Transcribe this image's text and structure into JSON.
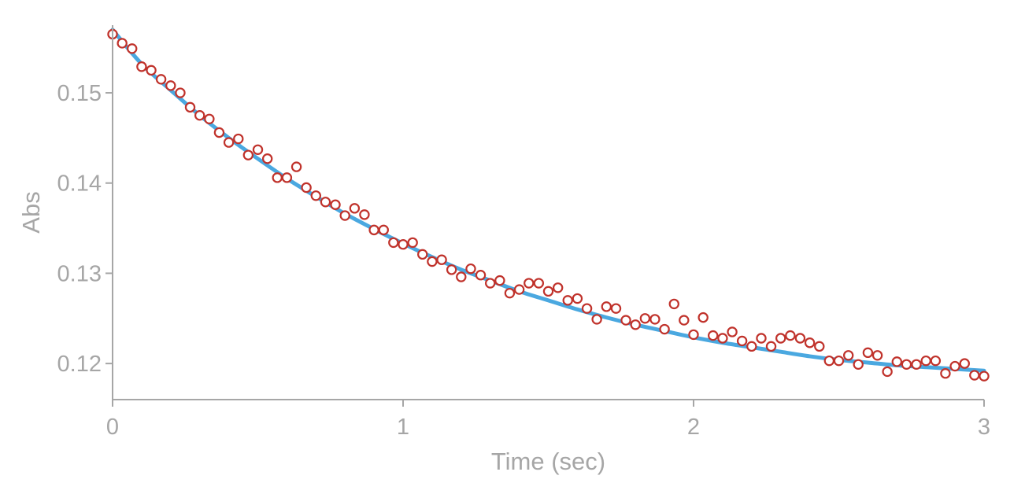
{
  "chart_data": {
    "type": "scatter",
    "title": "",
    "xlabel": "Time (sec)",
    "ylabel": "Abs",
    "xlim": [
      0,
      3
    ],
    "ylim": [
      0.116,
      0.1575
    ],
    "x_ticks": [
      0,
      1,
      2,
      3
    ],
    "x_tick_labels": [
      "0",
      "1",
      "2",
      "3"
    ],
    "y_ticks": [
      0.12,
      0.13,
      0.14,
      0.15
    ],
    "y_tick_labels": [
      "0.12",
      "0.13",
      "0.14",
      "0.15"
    ],
    "grid": false,
    "legend": "none",
    "colors": {
      "points": "#c0322b",
      "fit": "#4aa8e0",
      "axis": "#a6a6a6"
    },
    "series": [
      {
        "kind": "points",
        "x": [
          0.0,
          0.033,
          0.067,
          0.1,
          0.133,
          0.167,
          0.2,
          0.233,
          0.267,
          0.3,
          0.333,
          0.367,
          0.4,
          0.433,
          0.467,
          0.5,
          0.533,
          0.567,
          0.6,
          0.633,
          0.667,
          0.7,
          0.733,
          0.767,
          0.8,
          0.833,
          0.867,
          0.9,
          0.933,
          0.967,
          1.0,
          1.033,
          1.067,
          1.1,
          1.133,
          1.167,
          1.2,
          1.233,
          1.267,
          1.3,
          1.333,
          1.367,
          1.4,
          1.433,
          1.467,
          1.5,
          1.533,
          1.567,
          1.6,
          1.633,
          1.667,
          1.7,
          1.733,
          1.767,
          1.8,
          1.833,
          1.867,
          1.9,
          1.933,
          1.967,
          2.0,
          2.033,
          2.067,
          2.1,
          2.133,
          2.167,
          2.2,
          2.233,
          2.267,
          2.3,
          2.333,
          2.367,
          2.4,
          2.433,
          2.467,
          2.5,
          2.533,
          2.567,
          2.6,
          2.633,
          2.667,
          2.7,
          2.733,
          2.767,
          2.8,
          2.833,
          2.867,
          2.9,
          2.933,
          2.967,
          3.0
        ],
        "y": [
          0.1565,
          0.1555,
          0.1549,
          0.1529,
          0.1525,
          0.1515,
          0.1508,
          0.15,
          0.1484,
          0.1475,
          0.1471,
          0.1456,
          0.1445,
          0.1449,
          0.1431,
          0.1437,
          0.1427,
          0.1406,
          0.1406,
          0.1418,
          0.1395,
          0.1386,
          0.1379,
          0.1376,
          0.1364,
          0.1372,
          0.1365,
          0.1348,
          0.1348,
          0.1334,
          0.1332,
          0.1334,
          0.1321,
          0.1313,
          0.1315,
          0.1304,
          0.1296,
          0.1305,
          0.1298,
          0.1289,
          0.1292,
          0.1278,
          0.1282,
          0.1289,
          0.1289,
          0.128,
          0.1284,
          0.127,
          0.1272,
          0.1261,
          0.1249,
          0.1263,
          0.1261,
          0.1248,
          0.1243,
          0.125,
          0.1249,
          0.1238,
          0.1266,
          0.1248,
          0.1232,
          0.1251,
          0.1231,
          0.1228,
          0.1235,
          0.1225,
          0.1219,
          0.1228,
          0.1219,
          0.1228,
          0.1231,
          0.1228,
          0.1223,
          0.1219,
          0.1203,
          0.1203,
          0.1209,
          0.1199,
          0.1212,
          0.1209,
          0.1191,
          0.1202,
          0.1199,
          0.1199,
          0.1203,
          0.1203,
          0.1189,
          0.1197,
          0.12,
          0.1187,
          0.1186
        ]
      },
      {
        "kind": "fit",
        "x": [
          0.0,
          0.1,
          0.2,
          0.3,
          0.4,
          0.5,
          0.6,
          0.7,
          0.8,
          0.9,
          1.0,
          1.1,
          1.2,
          1.3,
          1.4,
          1.5,
          1.6,
          1.7,
          1.8,
          1.9,
          2.0,
          2.1,
          2.2,
          2.3,
          2.4,
          2.5,
          2.6,
          2.7,
          2.8,
          2.9,
          3.0
        ],
        "y": [
          0.157,
          0.1532,
          0.1503,
          0.1475,
          0.145,
          0.1427,
          0.1405,
          0.1385,
          0.1366,
          0.1349,
          0.1333,
          0.1318,
          0.1304,
          0.1292,
          0.128,
          0.127,
          0.126,
          0.1251,
          0.1243,
          0.1236,
          0.1229,
          0.1223,
          0.1218,
          0.1213,
          0.1208,
          0.1204,
          0.1201,
          0.1198,
          0.1196,
          0.1194,
          0.1192
        ]
      }
    ]
  }
}
